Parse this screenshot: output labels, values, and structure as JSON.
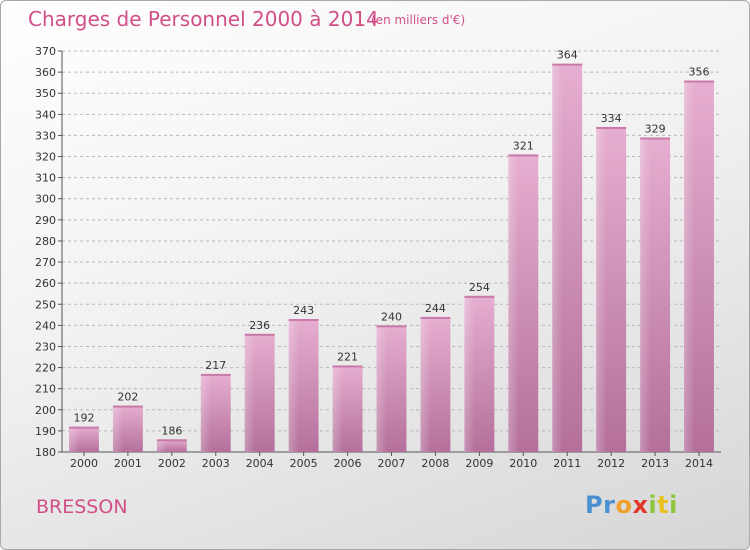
{
  "chart_data": {
    "type": "bar",
    "title": "Charges de Personnel 2000 à 2014",
    "subtitle": "(en milliers d'€)",
    "categories": [
      "2000",
      "2001",
      "2002",
      "2003",
      "2004",
      "2005",
      "2006",
      "2007",
      "2008",
      "2009",
      "2010",
      "2011",
      "2012",
      "2013",
      "2014"
    ],
    "values": [
      192,
      202,
      186,
      217,
      236,
      243,
      221,
      240,
      244,
      254,
      321,
      364,
      334,
      329,
      356
    ],
    "ylim": [
      180,
      370
    ],
    "yticks": [
      180,
      190,
      200,
      210,
      220,
      230,
      240,
      250,
      260,
      270,
      280,
      290,
      300,
      310,
      320,
      330,
      340,
      350,
      360,
      370
    ],
    "grid": true,
    "bar_color": "#d78fb7",
    "title_color": "#d14f87"
  },
  "commune": "BRESSON",
  "logo": {
    "parts": [
      "Pr",
      "o",
      "x",
      "i",
      "t",
      "i"
    ]
  }
}
